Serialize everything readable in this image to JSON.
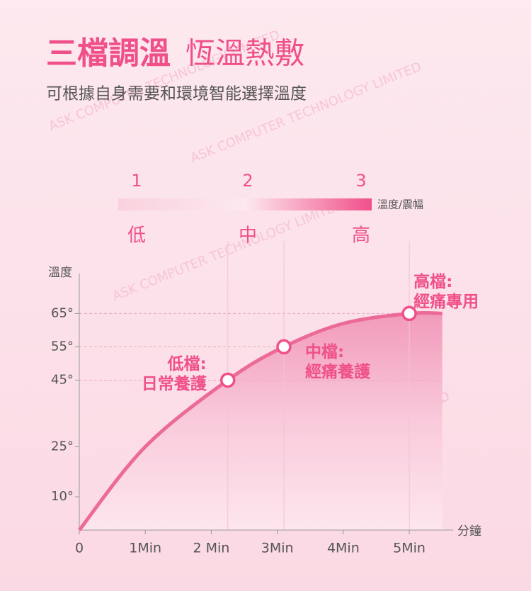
{
  "header": {
    "title_bold": "三檔調溫",
    "title_light": "恆溫熱敷",
    "subtitle": "可根據自身需要和環境智能選擇溫度"
  },
  "watermark": "ASK COMPUTER TECHNOLOGY LIMITED",
  "levels": {
    "numbers": [
      "1",
      "2",
      "3"
    ],
    "bar_label": "溫度/震幅",
    "names": [
      "低",
      "中",
      "高"
    ]
  },
  "chart_data": {
    "type": "line",
    "ylabel": "溫度",
    "xlabel": "分鐘",
    "x": [
      0,
      1,
      2.25,
      3.1,
      4,
      5,
      5.5
    ],
    "series": [
      {
        "color": "#ec6a98",
        "values": [
          0,
          25,
          45,
          55,
          62,
          65,
          65
        ]
      }
    ],
    "xlim": [
      0,
      5.6
    ],
    "ylim": [
      0,
      77
    ],
    "xticks": [
      0,
      {
        "value": 1,
        "label": "1Min"
      },
      {
        "value": 2,
        "label": "2 Min"
      },
      {
        "value": 3,
        "label": "3Min"
      },
      {
        "value": 4,
        "label": "4Min"
      },
      {
        "value": 5,
        "label": "5Min"
      }
    ],
    "yticks": [
      {
        "value": 65,
        "label": "65°"
      },
      {
        "value": 55,
        "label": "55°"
      },
      {
        "value": 45,
        "label": "45°"
      },
      {
        "value": 25,
        "label": "25°"
      },
      {
        "value": 10,
        "label": "10°"
      }
    ],
    "annotations": [
      {
        "x": 2.25,
        "y": 45,
        "lines": [
          "低檔:",
          "日常養護"
        ]
      },
      {
        "x": 3.1,
        "y": 55,
        "lines": [
          "中檔:",
          "經痛養護"
        ]
      },
      {
        "x": 5,
        "y": 65,
        "lines": [
          "高檔:",
          "經痛專用"
        ]
      }
    ]
  }
}
